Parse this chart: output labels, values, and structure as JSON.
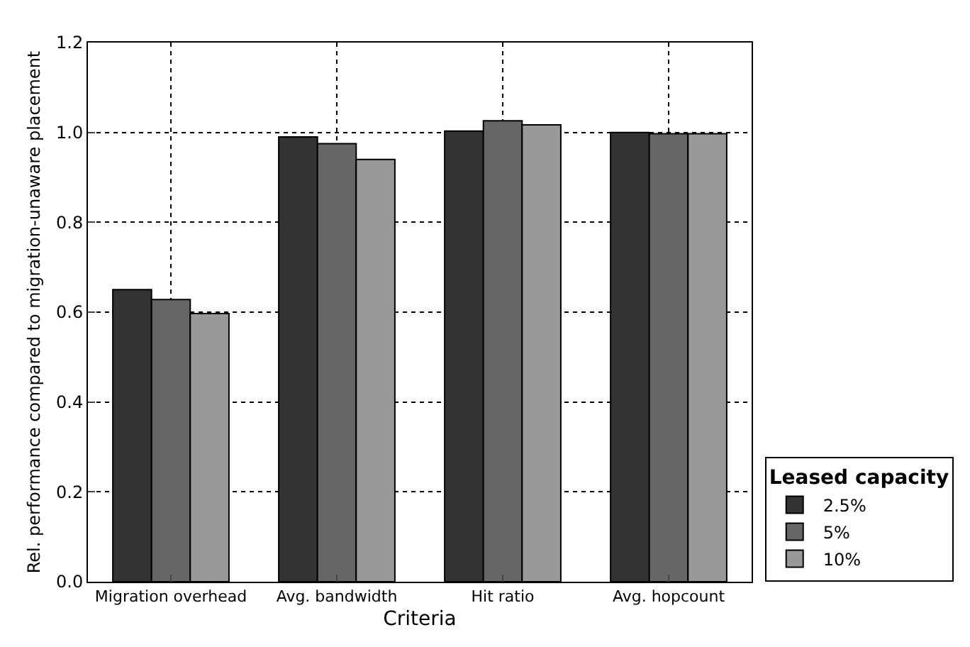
{
  "chart_data": {
    "type": "bar",
    "xlabel": "Criteria",
    "ylabel": "Rel. performance compared to migration-unaware placement",
    "legend_title": "Leased capacity",
    "categories": [
      "Migration overhead",
      "Avg. bandwidth",
      "Hit ratio",
      "Avg. hopcount"
    ],
    "series": [
      {
        "name": "2.5%",
        "color": "#333333",
        "values": [
          0.65,
          0.99,
          1.003,
          1.0
        ]
      },
      {
        "name": "5%",
        "color": "#666666",
        "values": [
          0.628,
          0.975,
          1.026,
          0.997
        ]
      },
      {
        "name": "10%",
        "color": "#999999",
        "values": [
          0.597,
          0.94,
          1.017,
          0.997
        ]
      }
    ],
    "ylim": [
      0,
      1.2
    ],
    "yticks": [
      {
        "value": 0,
        "label": "0.0"
      },
      {
        "value": 0.2,
        "label": "0.2"
      },
      {
        "value": 0.4,
        "label": "0.4"
      },
      {
        "value": 0.6,
        "label": "0.6"
      },
      {
        "value": 0.8,
        "label": "0.8"
      },
      {
        "value": 1,
        "label": "1.0"
      },
      {
        "value": 1.2,
        "label": "1.2"
      }
    ],
    "grid": true,
    "legend": "bottom right"
  }
}
